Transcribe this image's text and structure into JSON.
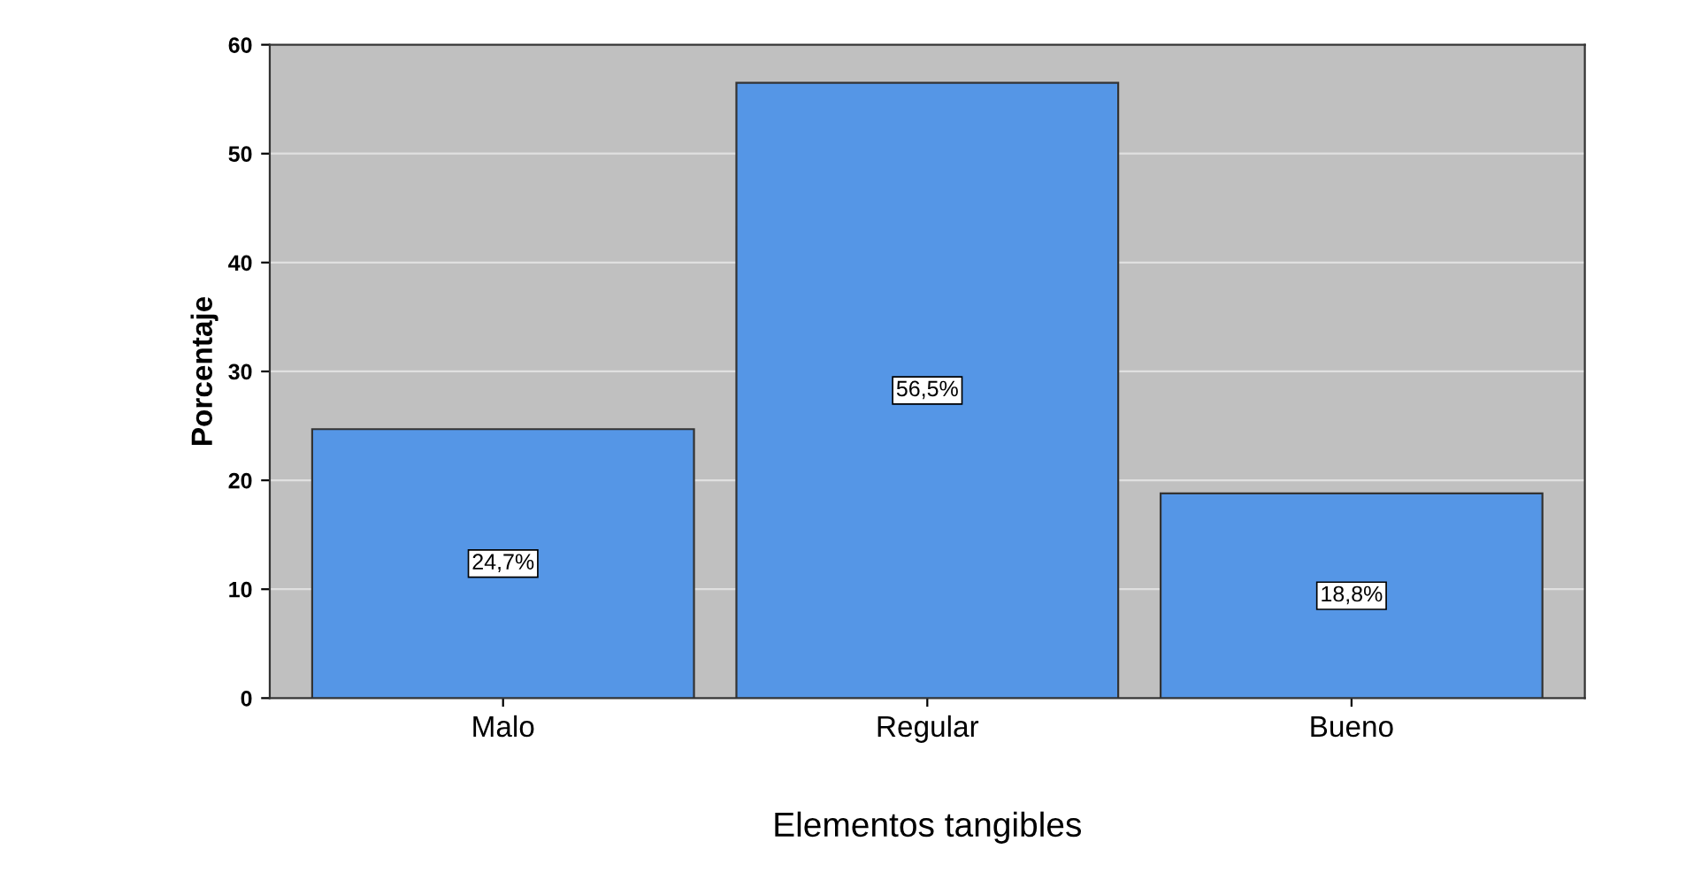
{
  "chart_data": {
    "type": "bar",
    "xlabel": "Elementos tangibles",
    "ylabel": "Porcentaje",
    "categories": [
      "Malo",
      "Regular",
      "Bueno"
    ],
    "values": [
      24.7,
      56.5,
      18.8
    ],
    "value_labels": [
      "24,7%",
      "56,5%",
      "18,8%"
    ],
    "color": "#5596e6",
    "ylim": [
      0,
      60
    ],
    "yticks": [
      0,
      10,
      20,
      30,
      40,
      50,
      60
    ],
    "grid": "y"
  }
}
